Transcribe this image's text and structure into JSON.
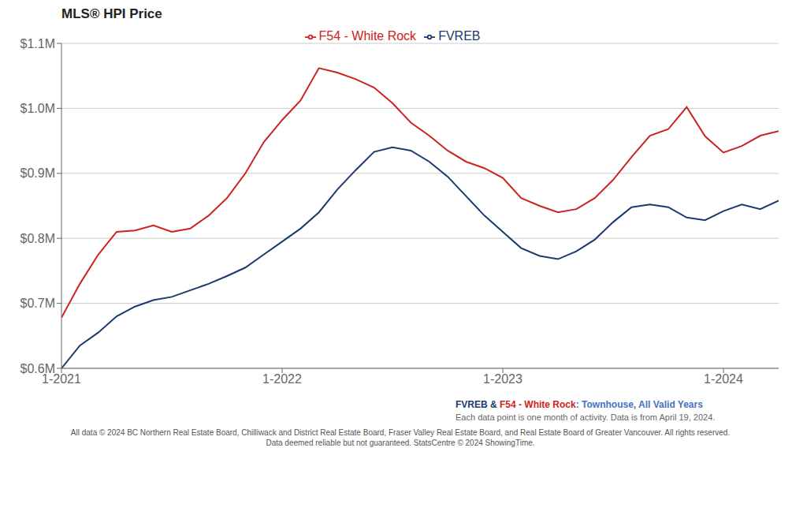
{
  "chart_data": {
    "type": "line",
    "title": "MLS® HPI Price",
    "subtitle": [
      {
        "text": "FVREB & ",
        "color": "#1a3a6b"
      },
      {
        "text": "F54 - White Rock",
        "color": "#cc2222"
      },
      {
        "text": ": Townhouse, All Valid Years",
        "color": "#4472c4"
      }
    ],
    "annotations": [
      "Each data point is one month of activity. Data is from April 19, 2024.",
      "All data © 2024 BC Northern Real Estate Board, Chilliwack and District Real Estate Board, Fraser Valley Real Estate Board, and Real Estate Board of Greater Vancouver. All rights reserved.",
      "Data deemed reliable but not guaranteed. StatsCentre © 2024 ShowingTime."
    ],
    "x": [
      0,
      1,
      2,
      3,
      4,
      5,
      6,
      7,
      8,
      9,
      10,
      11,
      12,
      13,
      14,
      15,
      16,
      17,
      18,
      19,
      20,
      21,
      22,
      23,
      24,
      25,
      26,
      27,
      28,
      29,
      30,
      31,
      32,
      33,
      34,
      35,
      36,
      37,
      38,
      39
    ],
    "series": [
      {
        "name": "FVREB",
        "color": "#1a3a6b",
        "values": [
          600000,
          635000,
          655000,
          680000,
          695000,
          705000,
          710000,
          720000,
          730000,
          742000,
          755000,
          775000,
          795000,
          815000,
          840000,
          875000,
          905000,
          933000,
          940000,
          935000,
          918000,
          895000,
          865000,
          835000,
          810000,
          785000,
          773000,
          768000,
          780000,
          798000,
          825000,
          848000,
          852000,
          848000,
          832000,
          828000,
          842000,
          852000,
          845000,
          858000
        ]
      },
      {
        "name": "F54 - White Rock",
        "color": "#cc2222",
        "values": [
          678000,
          730000,
          775000,
          810000,
          812000,
          820000,
          810000,
          815000,
          835000,
          862000,
          900000,
          948000,
          982000,
          1012000,
          1062000,
          1055000,
          1045000,
          1032000,
          1008000,
          978000,
          958000,
          935000,
          918000,
          908000,
          893000,
          862000,
          850000,
          840000,
          845000,
          862000,
          890000,
          925000,
          958000,
          968000,
          1002000,
          957000,
          932000,
          942000,
          958000,
          965000
        ]
      }
    ],
    "xlim": [
      0,
      39
    ],
    "xticks": [
      {
        "value": 0,
        "label": "1-2021"
      },
      {
        "value": 12,
        "label": "1-2022"
      },
      {
        "value": 24,
        "label": "1-2023"
      },
      {
        "value": 36,
        "label": "1-2024"
      }
    ],
    "ylim": [
      600000,
      1100000
    ],
    "yticks": [
      {
        "value": 600000,
        "label": "$0.6M"
      },
      {
        "value": 700000,
        "label": "$0.7M"
      },
      {
        "value": 800000,
        "label": "$0.8M"
      },
      {
        "value": 900000,
        "label": "$0.9M"
      },
      {
        "value": 1000000,
        "label": "$1.0M"
      },
      {
        "value": 1100000,
        "label": "$1.1M"
      }
    ],
    "grid": "y",
    "legend": "top"
  }
}
